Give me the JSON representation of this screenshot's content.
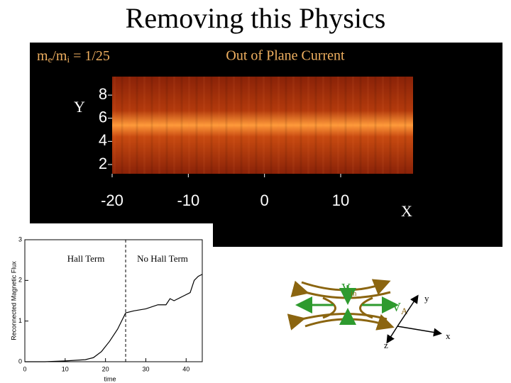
{
  "title": "Removing this Physics",
  "chart_data": [
    {
      "type": "heatmap",
      "title": "Out of Plane Current",
      "annotation": {
        "base1": "m",
        "sub1": "e",
        "base2": "/m",
        "sub2": "i",
        "rest": " = 1/25"
      },
      "xlabel": "X",
      "ylabel": "Y",
      "xlim": [
        -20,
        19.5
      ],
      "ylim": [
        1.2,
        9.6
      ],
      "xticks": [
        -20,
        -10,
        0,
        10
      ],
      "yticks": [
        2,
        4,
        6,
        8
      ]
    },
    {
      "type": "line",
      "xlabel": "time",
      "ylabel": "Reconnected Magnetic Flux",
      "annotations": [
        "Hall Term",
        "No Hall Term"
      ],
      "vline": 25,
      "color": "#000000",
      "x": [
        0,
        5,
        10,
        15,
        17,
        19,
        21,
        23,
        24,
        25,
        27,
        30,
        33,
        35,
        36,
        37,
        39,
        41,
        42,
        43,
        44
      ],
      "values": [
        0,
        0,
        0.02,
        0.05,
        0.1,
        0.25,
        0.5,
        0.8,
        1.0,
        1.2,
        1.25,
        1.3,
        1.4,
        1.4,
        1.55,
        1.5,
        1.6,
        1.7,
        2.0,
        2.1,
        2.15
      ],
      "xlim": [
        0,
        44
      ],
      "ylim": [
        0,
        3
      ],
      "xticks": [
        0,
        10,
        20,
        30,
        40
      ],
      "yticks": [
        0,
        1,
        2,
        3
      ]
    }
  ],
  "diagram": {
    "vin": {
      "base": "V",
      "sub": "in"
    },
    "va": {
      "base": "V",
      "sub": "A"
    },
    "axes": [
      "y",
      "x",
      "z"
    ]
  }
}
